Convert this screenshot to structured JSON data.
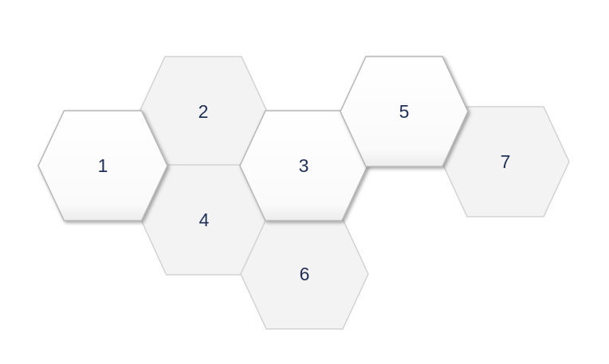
{
  "colors": {
    "background": "#ffffff",
    "raised_fill": "#ffffff",
    "raised_stroke": "#b8b8b8",
    "raised_shadow": "#6a6a6a",
    "flat_fill": "#f3f3f3",
    "flat_stroke": "#d3d3d3",
    "label": "#1f2f55"
  },
  "hexagons": [
    {
      "id": "1",
      "label": "1",
      "style": "raised"
    },
    {
      "id": "2",
      "label": "2",
      "style": "flat"
    },
    {
      "id": "3",
      "label": "3",
      "style": "raised"
    },
    {
      "id": "4",
      "label": "4",
      "style": "flat"
    },
    {
      "id": "5",
      "label": "5",
      "style": "raised"
    },
    {
      "id": "6",
      "label": "6",
      "style": "flat"
    },
    {
      "id": "7",
      "label": "7",
      "style": "flat"
    }
  ]
}
